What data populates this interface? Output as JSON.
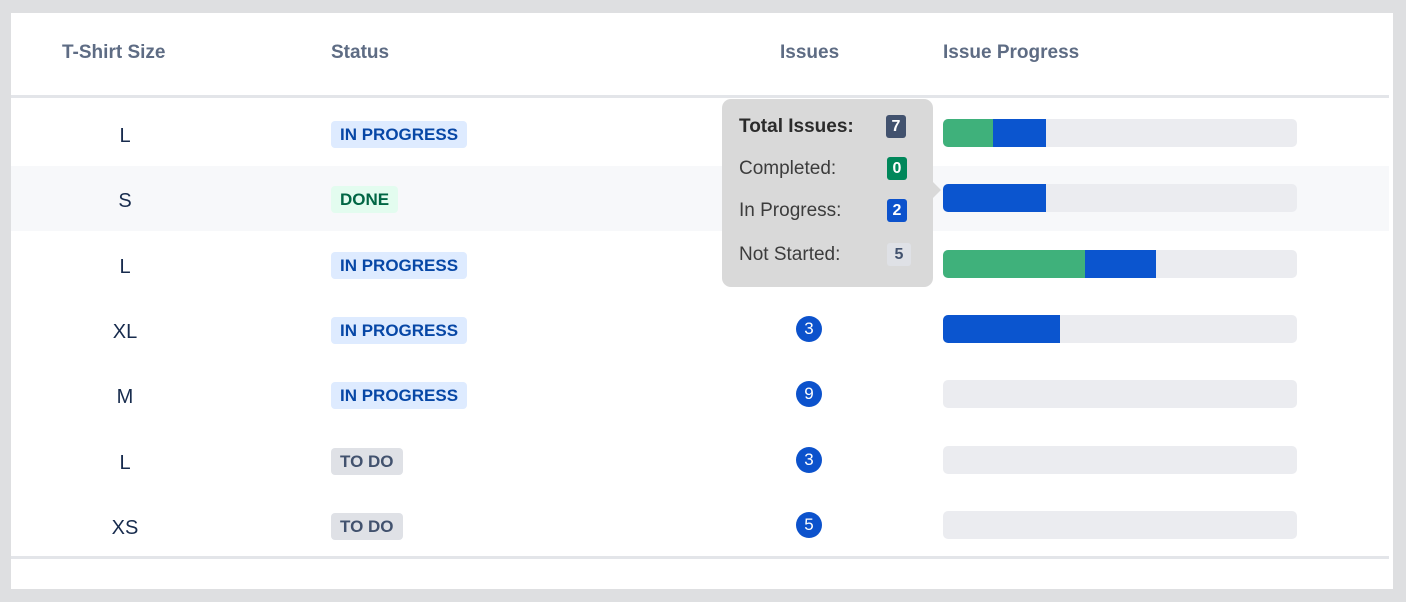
{
  "table": {
    "columns": {
      "size": "T-Shirt Size",
      "status": "Status",
      "issues": "Issues",
      "progress": "Issue Progress"
    },
    "rows": [
      {
        "size": "L",
        "status": "IN PROGRESS",
        "status_kind": "inprogress",
        "issues": "",
        "progress": {
          "done": 0.14,
          "in_progress": 0.15
        }
      },
      {
        "size": "S",
        "status": "DONE",
        "status_kind": "done",
        "issues": "",
        "progress": {
          "done": 0.0,
          "in_progress": 0.29
        }
      },
      {
        "size": "L",
        "status": "IN PROGRESS",
        "status_kind": "inprogress",
        "issues": "",
        "progress": {
          "done": 0.4,
          "in_progress": 0.2
        }
      },
      {
        "size": "XL",
        "status": "IN PROGRESS",
        "status_kind": "inprogress",
        "issues": "3",
        "progress": {
          "done": 0.0,
          "in_progress": 0.33
        }
      },
      {
        "size": "M",
        "status": "IN PROGRESS",
        "status_kind": "inprogress",
        "issues": "9",
        "progress": {
          "done": 0.0,
          "in_progress": 0.0
        }
      },
      {
        "size": "L",
        "status": "TO DO",
        "status_kind": "todo",
        "issues": "3",
        "progress": {
          "done": 0.0,
          "in_progress": 0.0
        }
      },
      {
        "size": "XS",
        "status": "TO DO",
        "status_kind": "todo",
        "issues": "5",
        "progress": {
          "done": 0.0,
          "in_progress": 0.0
        }
      }
    ]
  },
  "tooltip": {
    "total_label": "Total Issues:",
    "total": "7",
    "completed_label": "Completed:",
    "completed": "0",
    "in_progress_label": "In Progress:",
    "in_progress": "2",
    "not_started_label": "Not Started:",
    "not_started": "5"
  },
  "colors": {
    "done": "#3fb17b",
    "in_progress": "#0b55cf",
    "track": "#ebecf0",
    "badge": "#0c52cc"
  }
}
